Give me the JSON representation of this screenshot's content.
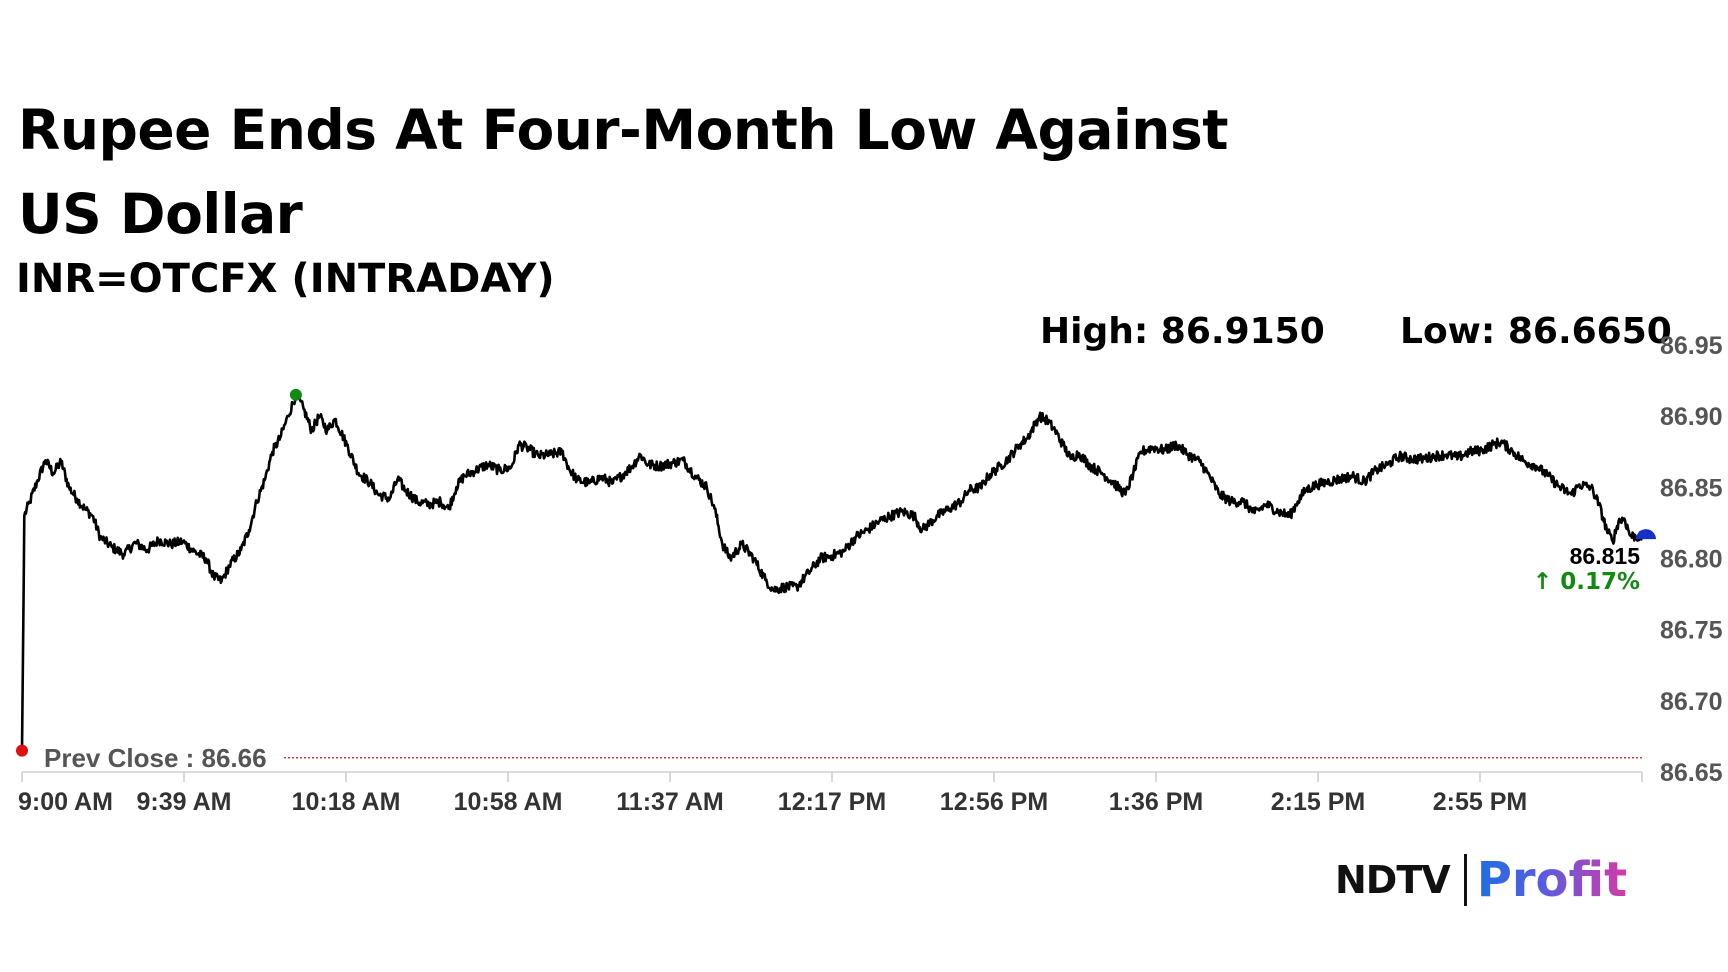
{
  "headline": "Rupee Ends At Four-Month Low Against US Dollar",
  "subtitle": "INR=OTCFX (INTRADAY)",
  "stats": {
    "high": "High: 86.9150",
    "low": "Low: 86.6650"
  },
  "last": {
    "value": "86.815",
    "change": "↑ 0.17%"
  },
  "logo": {
    "ndtv": "NDTV",
    "profit": "Profit"
  },
  "colors": {
    "line": "#000000",
    "high_marker": "#128a12",
    "start_marker": "#e01010",
    "end_marker": "#1530c8",
    "prev_close": "#cc1a1a",
    "change": "#128a12"
  },
  "chart_data": {
    "type": "line",
    "title": "INR=OTCFX (INTRADAY)",
    "xlabel": "",
    "ylabel": "",
    "ylim": [
      86.65,
      86.95
    ],
    "yticks": [
      "86.65",
      "86.70",
      "86.75",
      "86.80",
      "86.85",
      "86.90",
      "86.95"
    ],
    "xticks": [
      "9:00 AM",
      "9:39 AM",
      "10:18 AM",
      "10:58 AM",
      "11:37 AM",
      "12:17 PM",
      "12:56 PM",
      "1:36 PM",
      "2:15 PM",
      "2:55 PM"
    ],
    "x_minutes_range": [
      0,
      414
    ],
    "prev_close": {
      "value": 86.66,
      "label": "Prev Close : 86.66"
    },
    "high": 86.915,
    "low": 86.665,
    "close": 86.815,
    "change_pct": 0.17,
    "series": [
      {
        "name": "INR=OTCFX",
        "points": [
          [
            0,
            86.665
          ],
          [
            0.6,
            86.83
          ],
          [
            2,
            86.84
          ],
          [
            4,
            86.855
          ],
          [
            6,
            86.869
          ],
          [
            8,
            86.86
          ],
          [
            10,
            86.868
          ],
          [
            12,
            86.85
          ],
          [
            14,
            86.842
          ],
          [
            16,
            86.835
          ],
          [
            18,
            86.83
          ],
          [
            20,
            86.815
          ],
          [
            23,
            86.808
          ],
          [
            26,
            86.803
          ],
          [
            29,
            86.811
          ],
          [
            32,
            86.806
          ],
          [
            35,
            86.813
          ],
          [
            38,
            86.81
          ],
          [
            41,
            86.812
          ],
          [
            44,
            86.805
          ],
          [
            47,
            86.8
          ],
          [
            49,
            86.787
          ],
          [
            51,
            86.784
          ],
          [
            53,
            86.795
          ],
          [
            56,
            86.806
          ],
          [
            58,
            86.82
          ],
          [
            60,
            86.84
          ],
          [
            62,
            86.855
          ],
          [
            64,
            86.875
          ],
          [
            66,
            86.885
          ],
          [
            68,
            86.9
          ],
          [
            70,
            86.915
          ],
          [
            72,
            86.905
          ],
          [
            74,
            86.89
          ],
          [
            76,
            86.9
          ],
          [
            78,
            86.89
          ],
          [
            80,
            86.898
          ],
          [
            83,
            86.88
          ],
          [
            86,
            86.86
          ],
          [
            89,
            86.853
          ],
          [
            91,
            86.845
          ],
          [
            94,
            86.842
          ],
          [
            96,
            86.856
          ],
          [
            98,
            86.848
          ],
          [
            101,
            86.84
          ],
          [
            104,
            86.838
          ],
          [
            107,
            86.84
          ],
          [
            109,
            86.835
          ],
          [
            111,
            86.85
          ],
          [
            113,
            86.858
          ],
          [
            116,
            86.862
          ],
          [
            119,
            86.866
          ],
          [
            122,
            86.862
          ],
          [
            125,
            86.864
          ],
          [
            127,
            86.88
          ],
          [
            129,
            86.878
          ],
          [
            132,
            86.872
          ],
          [
            135,
            86.873
          ],
          [
            138,
            86.875
          ],
          [
            140,
            86.862
          ],
          [
            142,
            86.855
          ],
          [
            145,
            86.853
          ],
          [
            148,
            86.857
          ],
          [
            151,
            86.853
          ],
          [
            154,
            86.86
          ],
          [
            156,
            86.865
          ],
          [
            158,
            86.873
          ],
          [
            160,
            86.866
          ],
          [
            163,
            86.865
          ],
          [
            166,
            86.867
          ],
          [
            169,
            86.869
          ],
          [
            172,
            86.858
          ],
          [
            175,
            86.85
          ],
          [
            177,
            86.835
          ],
          [
            179,
            86.81
          ],
          [
            181,
            86.8
          ],
          [
            184,
            86.81
          ],
          [
            187,
            86.8
          ],
          [
            190,
            86.785
          ],
          [
            192,
            86.778
          ],
          [
            195,
            86.78
          ],
          [
            198,
            86.78
          ],
          [
            201,
            86.79
          ],
          [
            204,
            86.8
          ],
          [
            207,
            86.802
          ],
          [
            210,
            86.805
          ],
          [
            213,
            86.815
          ],
          [
            216,
            86.82
          ],
          [
            219,
            86.826
          ],
          [
            222,
            86.83
          ],
          [
            225,
            86.833
          ],
          [
            228,
            86.83
          ],
          [
            230,
            86.82
          ],
          [
            232,
            86.825
          ],
          [
            234,
            86.83
          ],
          [
            237,
            86.835
          ],
          [
            240,
            86.84
          ],
          [
            242,
            86.848
          ],
          [
            245,
            86.85
          ],
          [
            247,
            86.858
          ],
          [
            250,
            86.865
          ],
          [
            252,
            86.87
          ],
          [
            255,
            86.88
          ],
          [
            257,
            86.885
          ],
          [
            260,
            86.9
          ],
          [
            262,
            86.897
          ],
          [
            264,
            86.89
          ],
          [
            266,
            86.88
          ],
          [
            268,
            86.87
          ],
          [
            270,
            86.874
          ],
          [
            273,
            86.865
          ],
          [
            276,
            86.86
          ],
          [
            279,
            86.853
          ],
          [
            282,
            86.845
          ],
          [
            284,
            86.86
          ],
          [
            286,
            86.875
          ],
          [
            289,
            86.878
          ],
          [
            292,
            86.876
          ],
          [
            295,
            86.88
          ],
          [
            298,
            86.873
          ],
          [
            301,
            86.868
          ],
          [
            303,
            86.86
          ],
          [
            306,
            86.845
          ],
          [
            309,
            86.84
          ],
          [
            312,
            86.84
          ],
          [
            315,
            86.832
          ],
          [
            318,
            86.838
          ],
          [
            321,
            86.833
          ],
          [
            324,
            86.83
          ],
          [
            326,
            86.84
          ],
          [
            328,
            86.848
          ],
          [
            331,
            86.852
          ],
          [
            334,
            86.854
          ],
          [
            337,
            86.856
          ],
          [
            340,
            86.858
          ],
          [
            343,
            86.854
          ],
          [
            346,
            86.862
          ],
          [
            349,
            86.866
          ],
          [
            352,
            86.872
          ],
          [
            355,
            86.87
          ],
          [
            358,
            86.87
          ],
          [
            361,
            86.872
          ],
          [
            364,
            86.873
          ],
          [
            367,
            86.871
          ],
          [
            370,
            86.875
          ],
          [
            373,
            86.876
          ],
          [
            376,
            86.88
          ],
          [
            378,
            86.882
          ],
          [
            381,
            86.875
          ],
          [
            384,
            86.868
          ],
          [
            387,
            86.865
          ],
          [
            390,
            86.858
          ],
          [
            393,
            86.85
          ],
          [
            396,
            86.845
          ],
          [
            398,
            86.852
          ],
          [
            401,
            86.85
          ],
          [
            403,
            86.838
          ],
          [
            405,
            86.82
          ],
          [
            406.5,
            86.812
          ],
          [
            408,
            86.826
          ],
          [
            409.5,
            86.828
          ],
          [
            411,
            86.816
          ],
          [
            414,
            86.815
          ]
        ]
      }
    ]
  }
}
